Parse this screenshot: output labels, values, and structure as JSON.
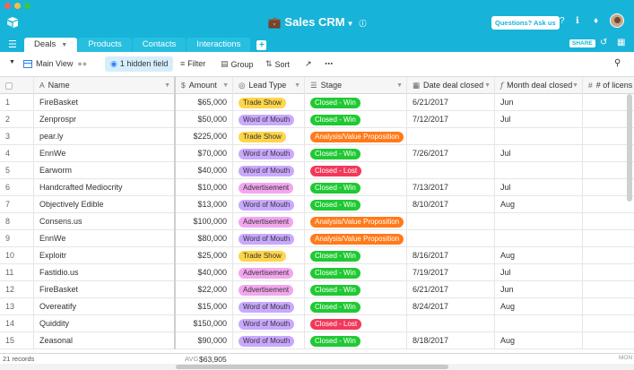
{
  "app": {
    "title": "Sales CRM",
    "help_label": "Questions? Ask us",
    "share_label": "SHARE"
  },
  "tabs": [
    {
      "label": "Deals"
    },
    {
      "label": "Products"
    },
    {
      "label": "Contacts"
    },
    {
      "label": "Interactions"
    }
  ],
  "toolbar": {
    "view_name": "Main View",
    "hidden_field": "1 hidden field",
    "filter": "Filter",
    "group": "Group",
    "sort": "Sort"
  },
  "columns": {
    "name": "Name",
    "amount": "Amount",
    "lead_type": "Lead Type",
    "stage": "Stage",
    "date_closed": "Date deal closed",
    "month_closed": "Month deal closed",
    "licenses": "# of licens"
  },
  "colors": {
    "accent": "#18b3d8",
    "trade_show": "#ffd54a",
    "word_of_mouth": "#c9a8ff",
    "advertisement": "#f3a6ee",
    "closed_win": "#20c933",
    "closed_lost": "#f2385a",
    "analysis": "#ff7a1a"
  },
  "rows": [
    {
      "num": "1",
      "name": "FireBasket",
      "amount": "$65,000",
      "lead": "Trade Show",
      "stage": "Closed - Win",
      "date": "6/21/2017",
      "month": "Jun"
    },
    {
      "num": "2",
      "name": "Zenprospr",
      "amount": "$50,000",
      "lead": "Word of Mouth",
      "stage": "Closed - Win",
      "date": "7/12/2017",
      "month": "Jul"
    },
    {
      "num": "3",
      "name": "pear.ly",
      "amount": "$225,000",
      "lead": "Trade Show",
      "stage": "Analysis/Value Proposition",
      "date": "",
      "month": ""
    },
    {
      "num": "4",
      "name": "EnnWe",
      "amount": "$70,000",
      "lead": "Word of Mouth",
      "stage": "Closed - Win",
      "date": "7/26/2017",
      "month": "Jul"
    },
    {
      "num": "5",
      "name": "Earworm",
      "amount": "$40,000",
      "lead": "Word of Mouth",
      "stage": "Closed - Lost",
      "date": "",
      "month": ""
    },
    {
      "num": "6",
      "name": "Handcrafted Mediocrity",
      "amount": "$10,000",
      "lead": "Advertisement",
      "stage": "Closed - Win",
      "date": "7/13/2017",
      "month": "Jul"
    },
    {
      "num": "7",
      "name": "Objectively Edible",
      "amount": "$13,000",
      "lead": "Word of Mouth",
      "stage": "Closed - Win",
      "date": "8/10/2017",
      "month": "Aug"
    },
    {
      "num": "8",
      "name": "Consens.us",
      "amount": "$100,000",
      "lead": "Advertisement",
      "stage": "Analysis/Value Proposition",
      "date": "",
      "month": ""
    },
    {
      "num": "9",
      "name": "EnnWe",
      "amount": "$80,000",
      "lead": "Word of Mouth",
      "stage": "Analysis/Value Proposition",
      "date": "",
      "month": ""
    },
    {
      "num": "10",
      "name": "Exploitr",
      "amount": "$25,000",
      "lead": "Trade Show",
      "stage": "Closed - Win",
      "date": "8/16/2017",
      "month": "Aug"
    },
    {
      "num": "11",
      "name": "Fastidio.us",
      "amount": "$40,000",
      "lead": "Advertisement",
      "stage": "Closed - Win",
      "date": "7/19/2017",
      "month": "Jul"
    },
    {
      "num": "12",
      "name": "FireBasket",
      "amount": "$22,000",
      "lead": "Advertisement",
      "stage": "Closed - Win",
      "date": "6/21/2017",
      "month": "Jun"
    },
    {
      "num": "13",
      "name": "Overeatify",
      "amount": "$15,000",
      "lead": "Word of Mouth",
      "stage": "Closed - Win",
      "date": "8/24/2017",
      "month": "Aug"
    },
    {
      "num": "14",
      "name": "Quiddity",
      "amount": "$150,000",
      "lead": "Word of Mouth",
      "stage": "Closed - Lost",
      "date": "",
      "month": ""
    },
    {
      "num": "15",
      "name": "Zeasonal",
      "amount": "$90,000",
      "lead": "Word of Mouth",
      "stage": "Closed - Win",
      "date": "8/18/2017",
      "month": "Aug"
    }
  ],
  "footer": {
    "records": "21 records",
    "avg_label": "AVG",
    "avg_value": "$63,905",
    "right_label": "MON"
  }
}
